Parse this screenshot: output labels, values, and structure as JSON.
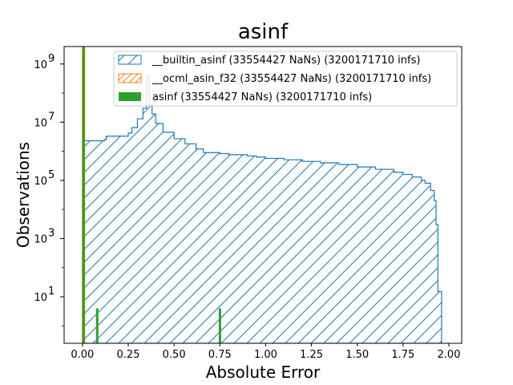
{
  "chart_data": {
    "type": "histogram",
    "title": "asinf",
    "xlabel": "Absolute Error",
    "ylabel": "Observations",
    "xlim": [
      -0.1,
      2.07
    ],
    "ylim_log10": [
      -0.6,
      9.6
    ],
    "y_scale": "log",
    "grid": false,
    "legend_position": "top-right",
    "x_ticks": [
      "0.00",
      "0.25",
      "0.50",
      "0.75",
      "1.00",
      "1.25",
      "1.50",
      "1.75",
      "2.00"
    ],
    "x_tick_values": [
      0,
      0.25,
      0.5,
      0.75,
      1.0,
      1.25,
      1.5,
      1.75,
      2.0
    ],
    "y_tick_exponents": [
      1,
      3,
      5,
      7,
      9
    ],
    "series": [
      {
        "name": "__builtin_asinf (33554427 NaNs) (3200171710 infs)",
        "color": "#1f77b4",
        "style": "step-hatched",
        "steps": [
          [
            0.0,
            2300000.0
          ],
          [
            0.12,
            2500000.0
          ],
          [
            0.13,
            3300000.0
          ],
          [
            0.25,
            4200000.0
          ],
          [
            0.27,
            6500000.0
          ],
          [
            0.3,
            13000000.0
          ],
          [
            0.33,
            30000000.0
          ],
          [
            0.35,
            400000000.0
          ],
          [
            0.365,
            40000000.0
          ],
          [
            0.38,
            19000000.0
          ],
          [
            0.4,
            9000000.0
          ],
          [
            0.44,
            4500000.0
          ],
          [
            0.5,
            2700000.0
          ],
          [
            0.56,
            1800000.0
          ],
          [
            0.62,
            1200000.0
          ],
          [
            0.66,
            900000.0
          ],
          [
            0.75,
            830000.0
          ],
          [
            0.8,
            760000.0
          ],
          [
            0.9,
            690000.0
          ],
          [
            0.95,
            630000.0
          ],
          [
            1.0,
            570000.0
          ],
          [
            1.1,
            510000.0
          ],
          [
            1.2,
            450000.0
          ],
          [
            1.3,
            400000.0
          ],
          [
            1.4,
            350000.0
          ],
          [
            1.5,
            290000.0
          ],
          [
            1.6,
            240000.0
          ],
          [
            1.7,
            190000.0
          ],
          [
            1.75,
            160000.0
          ],
          [
            1.8,
            130000.0
          ],
          [
            1.85,
            100000.0
          ],
          [
            1.87,
            80000.0
          ],
          [
            1.9,
            45000.0
          ],
          [
            1.92,
            20000.0
          ],
          [
            1.93,
            3000.0
          ],
          [
            1.94,
            15.0
          ],
          [
            1.96,
            0
          ]
        ]
      },
      {
        "name": "__ocml_asin_f32 (33554427 NaNs) (3200171710 infs)",
        "color": "#ff7f0e",
        "style": "bar",
        "bars": [
          [
            0.0,
            0.012,
            4000000000.0
          ]
        ]
      },
      {
        "name": "asinf (33554427 NaNs) (3200171710 infs)",
        "color": "#2ca02c",
        "style": "bar",
        "bars": [
          [
            0.0,
            0.008,
            4000000000.0
          ],
          [
            0.074,
            0.008,
            4
          ],
          [
            0.744,
            0.008,
            4
          ]
        ]
      }
    ]
  }
}
